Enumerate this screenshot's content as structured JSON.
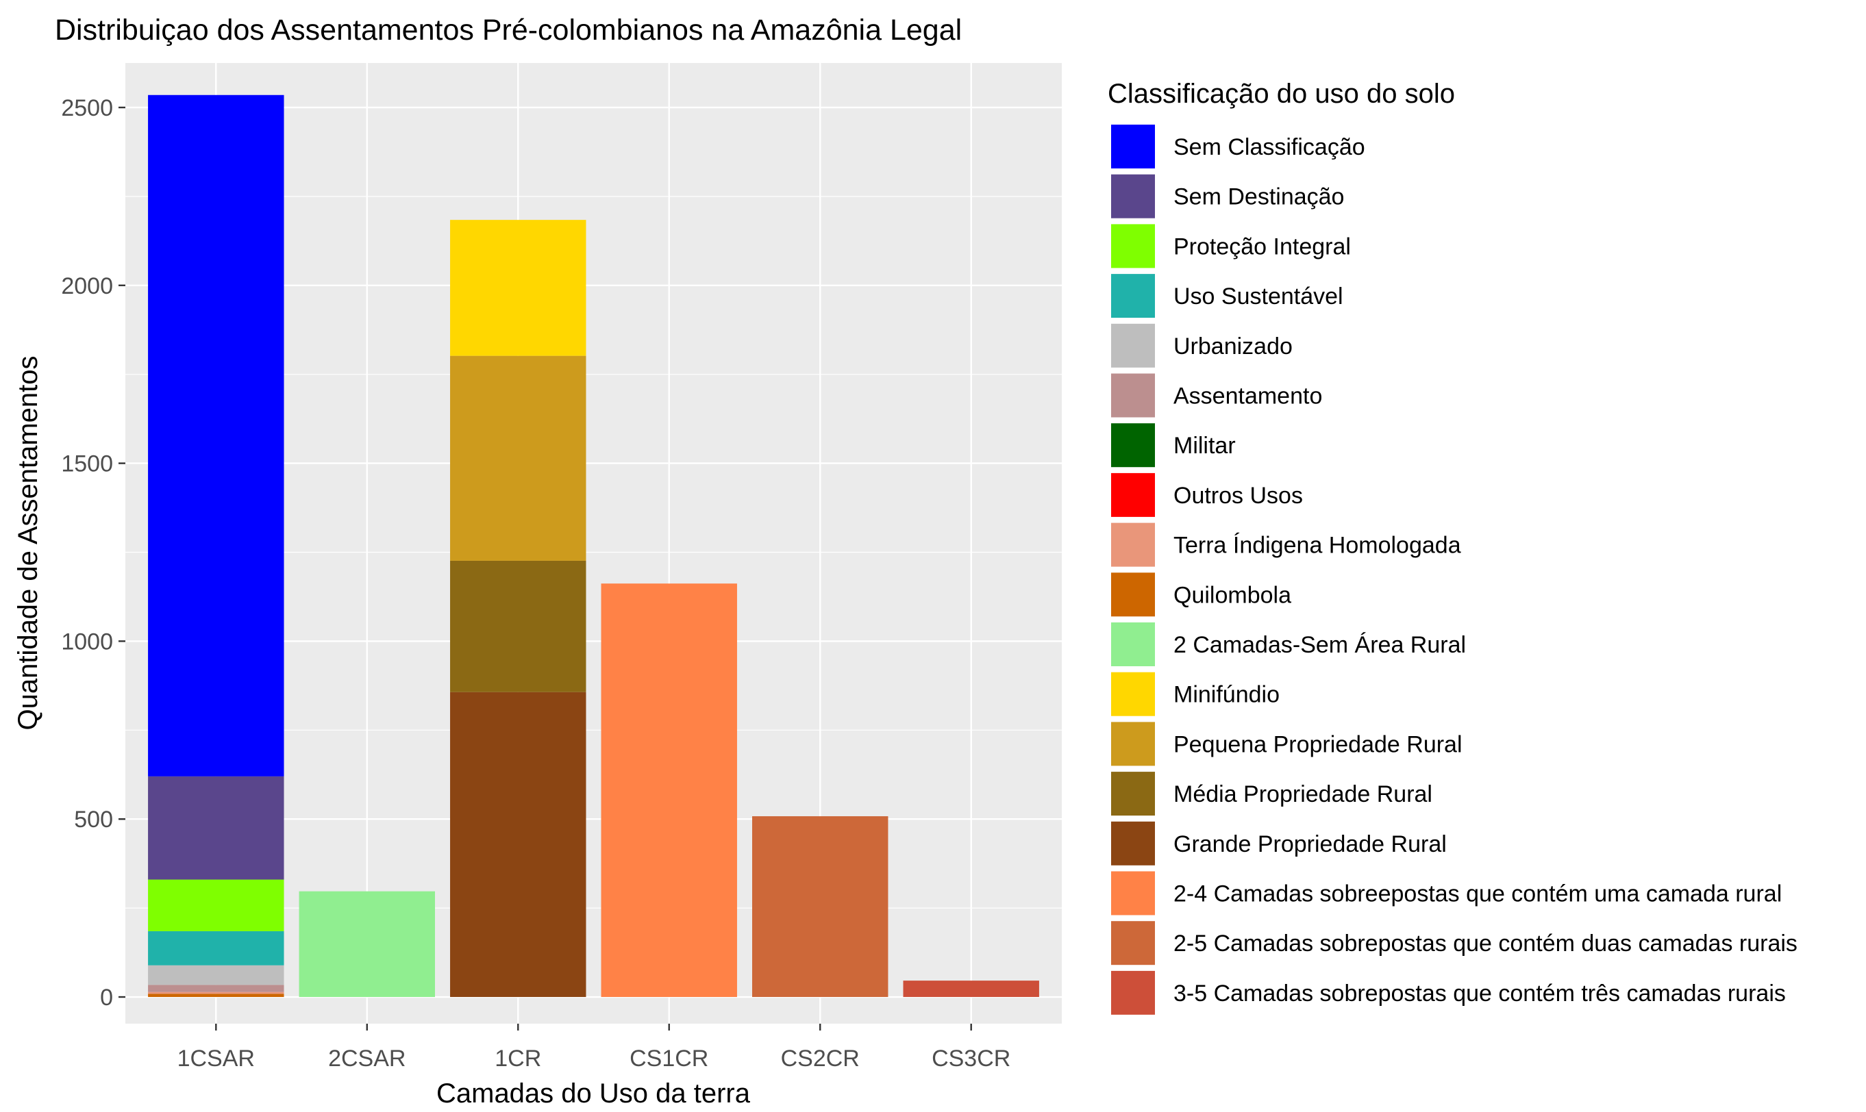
{
  "chart_data": {
    "type": "bar",
    "stacked": true,
    "title": "Distribuiçao dos Assentamentos Pré-colombianos na Amazônia Legal",
    "xlabel": "Camadas do Uso da terra",
    "ylabel": "Quantidade de Assentamentos",
    "ylim": [
      -75,
      2625
    ],
    "yticks": [
      0,
      500,
      1000,
      1500,
      2000,
      2500
    ],
    "grid": true,
    "legend_position": "right",
    "legend_title": "Classificação do uso do solo",
    "categories": [
      "1CSAR",
      "2CSAR",
      "1CR",
      "CS1CR",
      "CS2CR",
      "CS3CR"
    ],
    "series": [
      {
        "name": "Sem Classificação",
        "color": "#0000FF",
        "values": [
          1915,
          0,
          0,
          0,
          0,
          0
        ]
      },
      {
        "name": "Sem Destinação",
        "color": "#5A468C",
        "values": [
          290,
          0,
          0,
          0,
          0,
          0
        ]
      },
      {
        "name": "Proteção Integral",
        "color": "#7FFF00",
        "values": [
          145,
          0,
          0,
          0,
          0,
          0
        ]
      },
      {
        "name": "Uso Sustentável",
        "color": "#20B2AA",
        "values": [
          96,
          0,
          0,
          0,
          0,
          0
        ]
      },
      {
        "name": "Urbanizado",
        "color": "#BEBEBE",
        "values": [
          55,
          0,
          0,
          0,
          0,
          0
        ]
      },
      {
        "name": "Assentamento",
        "color": "#BC8F8F",
        "values": [
          20,
          0,
          0,
          0,
          0,
          0
        ]
      },
      {
        "name": "Militar",
        "color": "#006400",
        "values": [
          0,
          0,
          0,
          0,
          0,
          0
        ]
      },
      {
        "name": "Outros Usos",
        "color": "#FF0000",
        "values": [
          0,
          0,
          0,
          0,
          0,
          0
        ]
      },
      {
        "name": "Terra Índigena Homologada",
        "color": "#E9967A",
        "values": [
          5,
          0,
          0,
          0,
          0,
          0
        ]
      },
      {
        "name": "Quilombola",
        "color": "#CD6600",
        "values": [
          9,
          0,
          0,
          0,
          0,
          0
        ]
      },
      {
        "name": "2 Camadas-Sem Área Rural",
        "color": "#90EE90",
        "values": [
          0,
          297,
          0,
          0,
          0,
          0
        ]
      },
      {
        "name": "Minifúndio",
        "color": "#FFD700",
        "values": [
          0,
          0,
          382,
          0,
          0,
          0
        ]
      },
      {
        "name": "Pequena Propriedade Rural",
        "color": "#CD9B1D",
        "values": [
          0,
          0,
          576,
          0,
          0,
          0
        ]
      },
      {
        "name": "Média Propriedade Rural",
        "color": "#8B6914",
        "values": [
          0,
          0,
          369,
          0,
          0,
          0
        ]
      },
      {
        "name": "Grande Propriedade Rural",
        "color": "#8B4513",
        "values": [
          0,
          0,
          857,
          0,
          0,
          0
        ]
      },
      {
        "name": "2-4 Camadas sobreepostas que contém  uma camada rural",
        "color": "#FF8247",
        "values": [
          0,
          0,
          0,
          1162,
          0,
          0
        ]
      },
      {
        "name": "2-5 Camadas sobrepostas que contém duas camadas rurais",
        "color": "#CD6839",
        "values": [
          0,
          0,
          0,
          0,
          508,
          0
        ]
      },
      {
        "name": "3-5 Camadas sobrepostas que contém três camadas rurais",
        "color": "#CD4F39",
        "values": [
          0,
          0,
          0,
          0,
          0,
          46
        ]
      }
    ]
  }
}
